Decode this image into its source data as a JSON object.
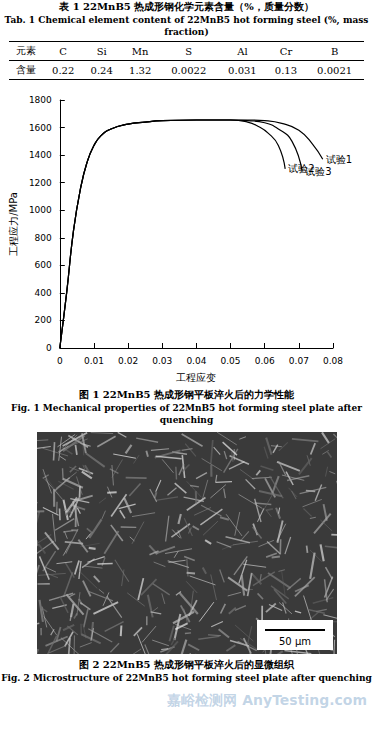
{
  "table": {
    "title": "表 1  22MnB5 热成形钢化学元素含量（%，质量分数）",
    "title_en": "Tab. 1  Chemical element content of 22MnB5 hot forming steel (%, mass fraction)",
    "header": [
      "元素",
      "C",
      "Si",
      "Mn",
      "S",
      "Al",
      "Cr",
      "B"
    ],
    "rows": [
      [
        "含量",
        "0.22",
        "0.24",
        "1.32",
        "0.0022",
        "0.031",
        "0.13",
        "0.0021"
      ]
    ]
  },
  "chart_data": {
    "type": "line",
    "xlabel": "工程应变",
    "ylabel": "工程应力/MPa",
    "xlim": [
      0,
      0.08
    ],
    "xticks": [
      0,
      0.01,
      0.02,
      0.03,
      0.04,
      0.05,
      0.06,
      0.07,
      0.08
    ],
    "ylim": [
      0,
      1800
    ],
    "yticks": [
      0,
      200,
      400,
      600,
      800,
      1000,
      1200,
      1400,
      1600,
      1800
    ],
    "grid": false,
    "series": [
      {
        "name": "试验1",
        "color": "#000000",
        "x": [
          0,
          0.002,
          0.004,
          0.006,
          0.008,
          0.01,
          0.012,
          0.015,
          0.02,
          0.025,
          0.03,
          0.04,
          0.05,
          0.055,
          0.06,
          0.065,
          0.07,
          0.074,
          0.077
        ],
        "values": [
          0,
          400,
          850,
          1150,
          1350,
          1470,
          1540,
          1590,
          1625,
          1640,
          1650,
          1655,
          1655,
          1655,
          1650,
          1630,
          1580,
          1480,
          1370
        ]
      },
      {
        "name": "试验2",
        "color": "#000000",
        "x": [
          0,
          0.002,
          0.004,
          0.006,
          0.008,
          0.01,
          0.012,
          0.015,
          0.02,
          0.025,
          0.03,
          0.04,
          0.05,
          0.055,
          0.058,
          0.061,
          0.064,
          0.066
        ],
        "values": [
          0,
          400,
          850,
          1150,
          1350,
          1470,
          1540,
          1590,
          1625,
          1640,
          1650,
          1655,
          1655,
          1640,
          1610,
          1560,
          1470,
          1300
        ]
      },
      {
        "name": "试验3",
        "color": "#000000",
        "x": [
          0,
          0.002,
          0.004,
          0.006,
          0.008,
          0.01,
          0.012,
          0.015,
          0.02,
          0.025,
          0.03,
          0.04,
          0.05,
          0.055,
          0.06,
          0.064,
          0.068,
          0.071
        ],
        "values": [
          0,
          400,
          850,
          1150,
          1350,
          1470,
          1540,
          1590,
          1625,
          1640,
          1650,
          1655,
          1655,
          1650,
          1635,
          1590,
          1500,
          1280
        ]
      }
    ]
  },
  "figure1": {
    "caption": "图 1  22MnB5 热成形钢平板淬火后的力学性能",
    "caption_en": "Fig. 1  Mechanical properties of 22MnB5 hot forming steel plate after quenching"
  },
  "figure2": {
    "scale_bar": "50 μm",
    "caption": "图 2  22MnB5 热成形钢平板淬火后的显微组织",
    "caption_en": "Fig. 2  Microstructure of 22MnB5 hot forming steel plate after quenching"
  },
  "watermark": "嘉峪检测网 AnyTesting.com"
}
